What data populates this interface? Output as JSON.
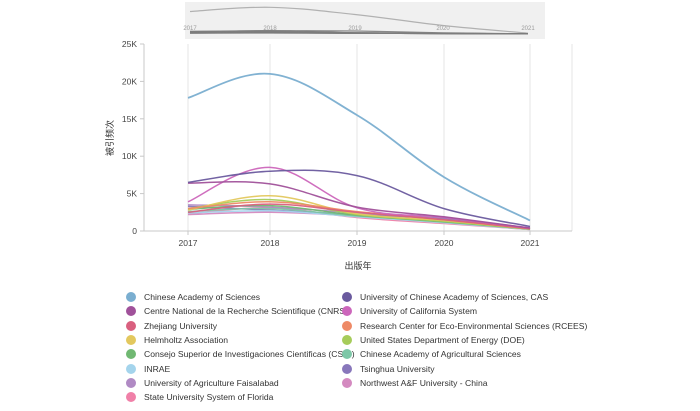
{
  "chart_data": {
    "type": "line",
    "xlabel": "出版年",
    "ylabel": "被引频次",
    "x": [
      "2017",
      "2018",
      "2019",
      "2020",
      "2021"
    ],
    "ylim": [
      0,
      25000
    ],
    "yticks": [
      "0",
      "5K",
      "10K",
      "15K",
      "20K",
      "25K"
    ],
    "grid": "vertical",
    "legend_position": "bottom",
    "series": [
      {
        "name": "Chinese Academy of Sciences",
        "color": "#7aaed0",
        "values": [
          17800,
          21000,
          15500,
          7200,
          1400
        ]
      },
      {
        "name": "University of Chinese Academy of Sciences, CAS",
        "color": "#6a5a9e",
        "values": [
          6500,
          8000,
          7400,
          3000,
          600
        ]
      },
      {
        "name": "Centre National de la Recherche Scientifique (CNRS)",
        "color": "#a0519a",
        "values": [
          6400,
          6300,
          3200,
          1900,
          400
        ]
      },
      {
        "name": "University of California System",
        "color": "#cc66bb",
        "values": [
          3900,
          8500,
          3100,
          1800,
          400
        ]
      },
      {
        "name": "Zhejiang University",
        "color": "#d9607f",
        "values": [
          2500,
          3600,
          2500,
          1500,
          300
        ]
      },
      {
        "name": "Research Center for Eco-Environmental Sciences (RCEES)",
        "color": "#ee8a66",
        "values": [
          3000,
          3900,
          2600,
          1500,
          300
        ]
      },
      {
        "name": "Helmholtz Association",
        "color": "#e3c85e",
        "values": [
          2800,
          4700,
          2300,
          1400,
          300
        ]
      },
      {
        "name": "United States Department of Energy (DOE)",
        "color": "#a6cc5a",
        "values": [
          3000,
          4200,
          2200,
          1300,
          250
        ]
      },
      {
        "name": "Consejo Superior de Investigaciones Cientificas (CSIC)",
        "color": "#70b872",
        "values": [
          2900,
          3400,
          2100,
          1200,
          250
        ]
      },
      {
        "name": "Chinese Academy of Agricultural Sciences",
        "color": "#7dc7a7",
        "values": [
          2600,
          3000,
          2000,
          1300,
          250
        ]
      },
      {
        "name": "INRAE",
        "color": "#a4d4ec",
        "values": [
          2400,
          2700,
          1900,
          1100,
          200
        ]
      },
      {
        "name": "Tsinghua University",
        "color": "#8877bb",
        "values": [
          3300,
          2800,
          2200,
          1600,
          300
        ]
      },
      {
        "name": "University of Agriculture Faisalabad",
        "color": "#b08ac4",
        "values": [
          3500,
          3200,
          2400,
          1700,
          350
        ]
      },
      {
        "name": "Northwest A&F University - China",
        "color": "#d48ac0",
        "values": [
          2200,
          2500,
          2000,
          1300,
          250
        ]
      },
      {
        "name": "State University System of Florida",
        "color": "#f080a8",
        "values": [
          2300,
          3100,
          1800,
          1000,
          200
        ]
      }
    ]
  }
}
